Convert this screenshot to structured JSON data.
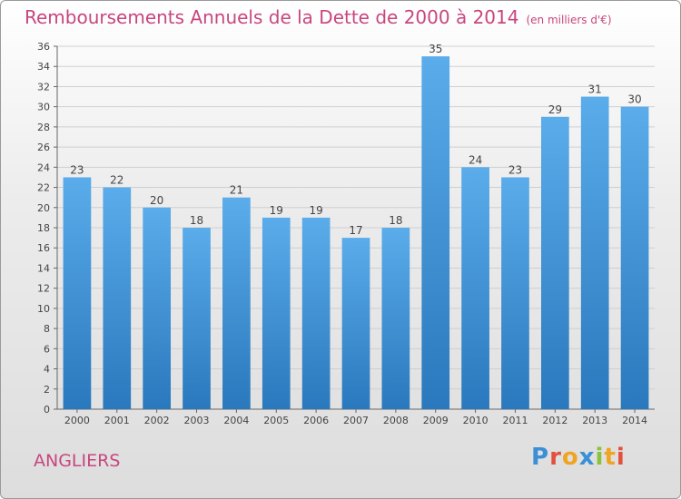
{
  "header": {
    "title": "Remboursements Annuels de la Dette de 2000 à 2014",
    "unit": "(en milliers d'€)"
  },
  "footer": {
    "town": "ANGLIERS",
    "logo_text": "Proxiti"
  },
  "colors": {
    "title": "#c8467e",
    "bar_top": "#5aacea",
    "bar_bottom": "#2a78bd",
    "logo_letters": [
      "#3a8fd6",
      "#e2513d",
      "#f0a423",
      "#3a8fd6",
      "#88c43a",
      "#f0a423",
      "#e2513d"
    ]
  },
  "chart_data": {
    "type": "bar",
    "categories": [
      "2000",
      "2001",
      "2002",
      "2003",
      "2004",
      "2005",
      "2006",
      "2007",
      "2008",
      "2009",
      "2010",
      "2011",
      "2012",
      "2013",
      "2014"
    ],
    "values": [
      23,
      22,
      20,
      18,
      21,
      19,
      19,
      17,
      18,
      35,
      24,
      23,
      29,
      31,
      30
    ],
    "title": "Remboursements Annuels de la Dette de 2000 à 2014",
    "ylim": [
      0,
      36
    ],
    "yticks": [
      0,
      2,
      4,
      6,
      8,
      10,
      12,
      14,
      16,
      18,
      20,
      22,
      24,
      26,
      28,
      30,
      32,
      34,
      36
    ],
    "grid": true,
    "data_labels": true
  }
}
